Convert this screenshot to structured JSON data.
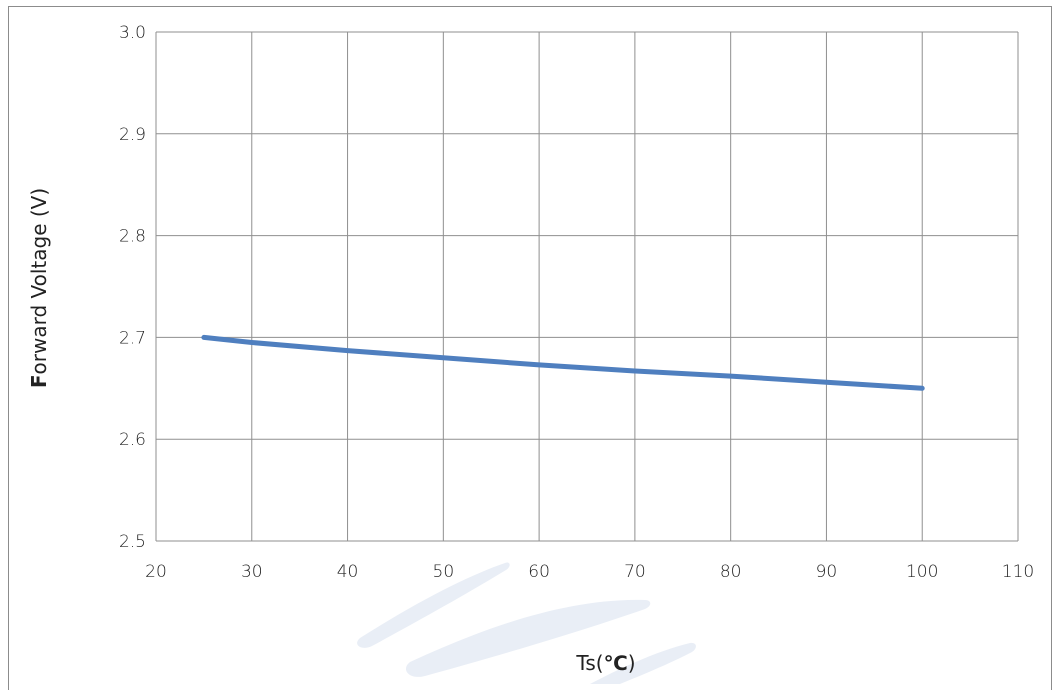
{
  "chart_data": {
    "type": "line",
    "title": "",
    "xlabel": "Ts(℃)",
    "xlabel_parts": {
      "plain_before": "Ts(",
      "bold": "℃",
      "plain_after": ")"
    },
    "ylabel": "Forward Voltage (V)",
    "ylabel_parts": {
      "bold": "F",
      "rest": "orward Voltage (V)"
    },
    "xlim": [
      20,
      110
    ],
    "ylim": [
      2.5,
      3.0
    ],
    "xticks": [
      20,
      30,
      40,
      50,
      60,
      70,
      80,
      90,
      100,
      110
    ],
    "yticks": [
      2.5,
      2.6,
      2.7,
      2.8,
      2.9,
      3.0
    ],
    "xtick_labels": [
      "20",
      "30",
      "40",
      "50",
      "60",
      "70",
      "80",
      "90",
      "100",
      "110"
    ],
    "ytick_labels": [
      "2.5",
      "2.6",
      "2.7",
      "2.8",
      "2.9",
      "3.0"
    ],
    "grid": true,
    "legend": "none",
    "series": [
      {
        "x": [
          25,
          30,
          40,
          50,
          60,
          70,
          80,
          90,
          100
        ],
        "y": [
          2.7,
          2.695,
          2.687,
          2.68,
          2.673,
          2.667,
          2.662,
          2.656,
          2.65
        ],
        "color": "#4f7fbf"
      }
    ],
    "watermark_color": "#e9eef6"
  }
}
